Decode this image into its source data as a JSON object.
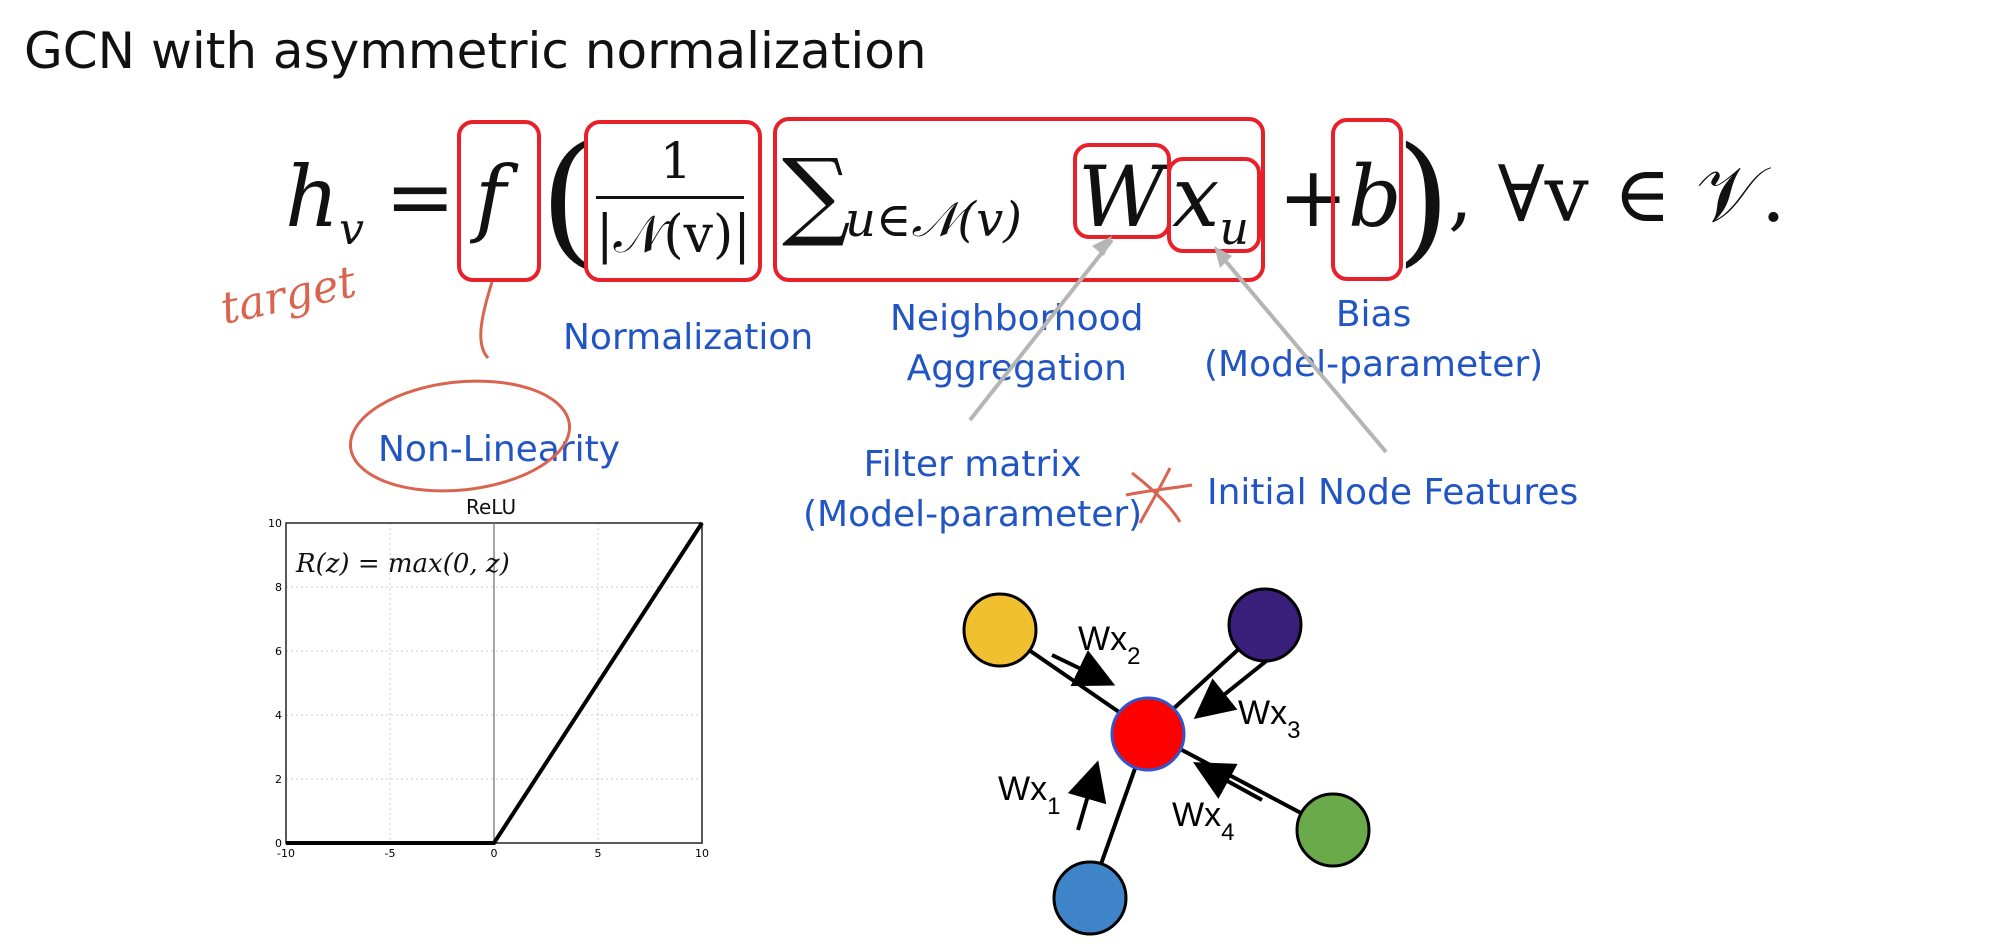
{
  "title": "GCN with asymmetric normalization",
  "equation": {
    "h": "h",
    "h_sub": "v",
    "equals": "=",
    "f": "f",
    "numerator": "1",
    "denominator": "|𝒩(v)|",
    "sum": "∑",
    "sum_sub": "u∈𝒩(v)",
    "W": "W",
    "x": "x",
    "x_sub": "u",
    "plus": "+",
    "b": "b",
    "forall": ",   ∀v ∈ 𝒱."
  },
  "labels": {
    "normalization": "Normalization",
    "neighborhood_line1": "Neighborhood",
    "neighborhood_line2": "Aggregation",
    "bias_line1": "Bias",
    "bias_line2": "(Model-parameter)",
    "nonlinearity": "Non-Linearity",
    "filter_line1": "Filter matrix",
    "filter_line2": "(Model-parameter)",
    "initial_features": "Initial Node Features",
    "handwritten_target": "target"
  },
  "relu_chart": {
    "title": "ReLU",
    "formula": "R(z) = max(0, z)",
    "x_ticks": [
      "-10",
      "-5",
      "0",
      "5",
      "10"
    ],
    "y_ticks": [
      "0",
      "2",
      "4",
      "6",
      "8",
      "10"
    ]
  },
  "chart_data": {
    "type": "line",
    "title": "ReLU",
    "x": [
      -10,
      0,
      10
    ],
    "series": [
      {
        "values": [
          0,
          0,
          10
        ]
      }
    ],
    "xlim": [
      -10,
      10
    ],
    "ylim": [
      0,
      10
    ],
    "grid": true
  },
  "graph": {
    "edge_labels": [
      "Wx2",
      "Wx3",
      "Wx1",
      "Wx4"
    ],
    "edge_labels_main": [
      "Wx",
      "Wx",
      "Wx",
      "Wx"
    ],
    "edge_labels_sub": [
      "2",
      "3",
      "1",
      "4"
    ],
    "colors": {
      "center": "#ff0000",
      "yellow": "#f0c030",
      "purple": "#3a1f7a",
      "green": "#6aaa4a",
      "blue": "#3f83c8"
    }
  }
}
